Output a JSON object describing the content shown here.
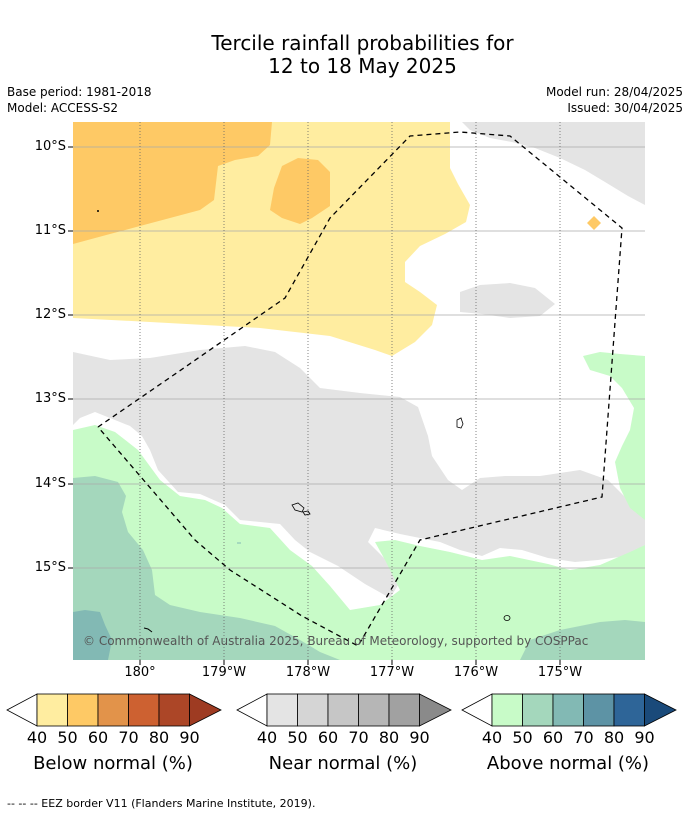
{
  "title": {
    "line1": "Tercile rainfall probabilities for",
    "line2": "12 to 18 May 2025"
  },
  "meta": {
    "base_period": "Base period: 1981-2018",
    "model": "Model: ACCESS-S2",
    "model_run": "Model run: 28/04/2025",
    "issued": "Issued: 30/04/2025"
  },
  "map": {
    "lat_labels": [
      "10°S",
      "11°S",
      "12°S",
      "13°S",
      "14°S",
      "15°S"
    ],
    "lon_labels": [
      "180°",
      "179°W",
      "178°W",
      "177°W",
      "176°W",
      "175°W"
    ],
    "copyright": "© Commonwealth of Australia 2025, Bureau of Meteorology, supported by COSPPac",
    "gridlines": true,
    "eez_border": "dashed"
  },
  "colorbars": [
    {
      "id": "below",
      "title": "Below normal (%)",
      "ticks": [
        "40",
        "50",
        "60",
        "70",
        "80",
        "90"
      ],
      "colors": [
        "#ffeda0",
        "#fec965",
        "#e2934a",
        "#cd6131",
        "#ac4627",
        "#9e3b22"
      ]
    },
    {
      "id": "near",
      "title": "Near normal (%)",
      "ticks": [
        "40",
        "50",
        "60",
        "70",
        "80",
        "90"
      ],
      "colors": [
        "#e4e4e4",
        "#d5d5d5",
        "#c6c6c6",
        "#b6b6b6",
        "#a1a1a1",
        "#8a8a8a"
      ]
    },
    {
      "id": "above",
      "title": "Above normal (%)",
      "ticks": [
        "40",
        "50",
        "60",
        "70",
        "80",
        "90"
      ],
      "colors": [
        "#c8fbc8",
        "#a4d7bc",
        "#82b9b4",
        "#5d93a5",
        "#2e6598",
        "#1a4a7a"
      ]
    }
  ],
  "footnote": "--  --  -- EEZ border V11 (Flanders Marine Institute, 2019)."
}
